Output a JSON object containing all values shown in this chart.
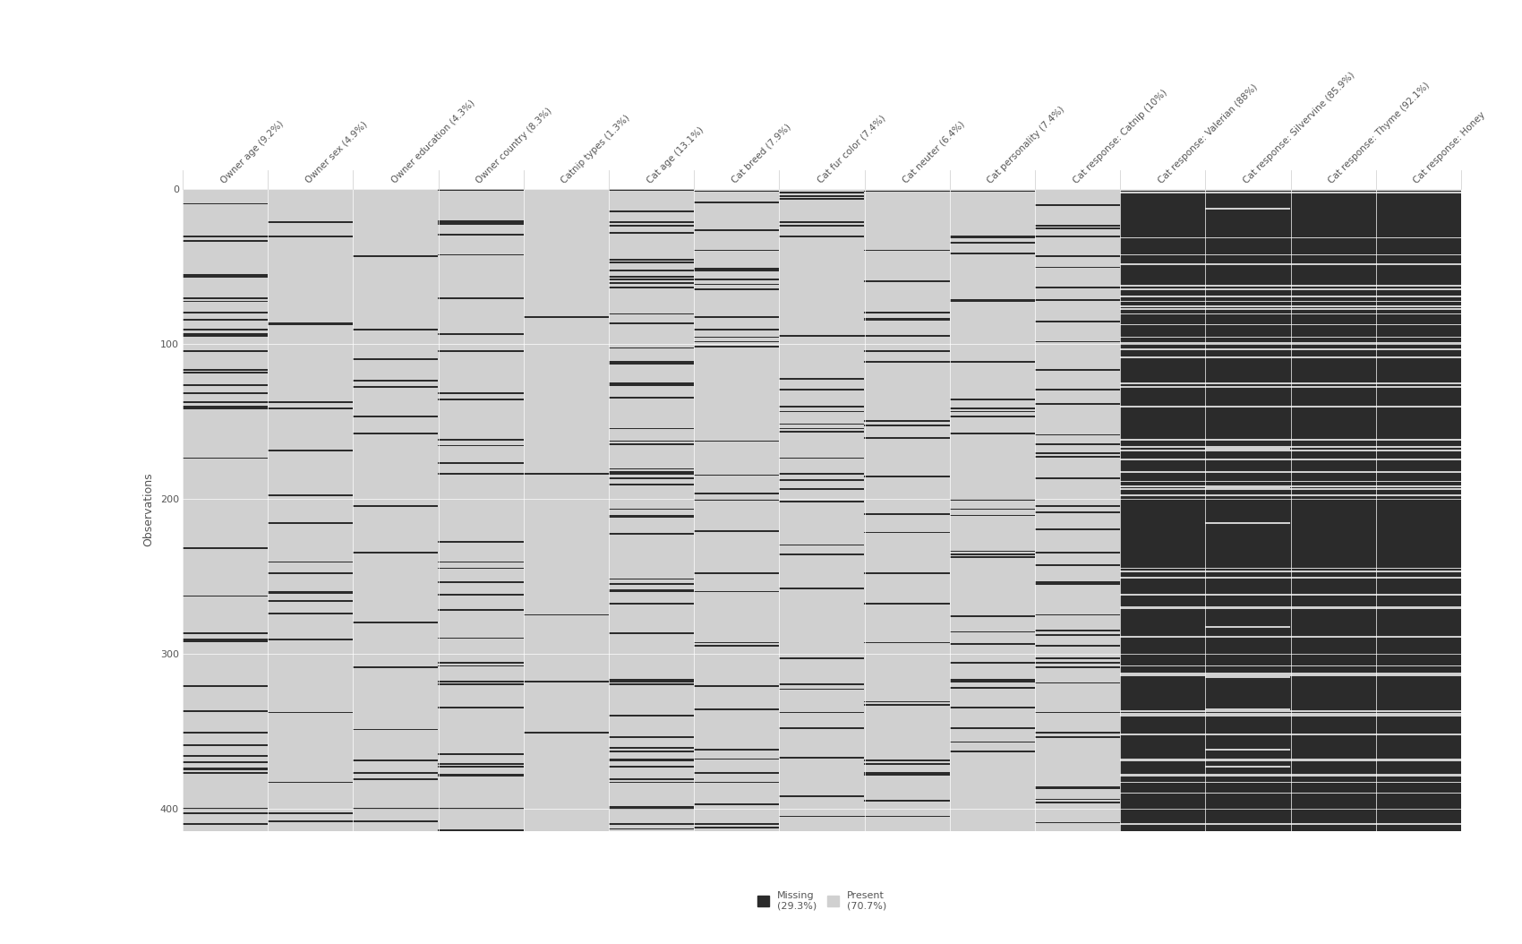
{
  "n_rows": 414,
  "columns": [
    "Owner age (9.2%)",
    "Owner sex (4.9%)",
    "Owner education (4.3%)",
    "Owner country (8.3%)",
    "Catnip types (1.3%)",
    "Cat age (13.1%)",
    "Cat breed (7.9%)",
    "Cat fur color (7.4%)",
    "Cat neuter (6.4%)",
    "Cat personality (7.4%)",
    "Cat response: Catnip (10%)",
    "Cat response: Valerian (88%)",
    "Cat response: Silvervine (85.9%)",
    "Cat response: Thyme (92.1%)",
    "Cat response: Honey"
  ],
  "missing_color": "#2b2b2b",
  "present_color": "#d0d0d0",
  "background_color": "#ffffff",
  "spine_color": "#cccccc",
  "ylabel": "Observations",
  "yticks": [
    0,
    100,
    200,
    300,
    400
  ],
  "missing_pct": 29.3,
  "present_pct": 70.7,
  "seed": 42,
  "col_missing_fractions": [
    0.092,
    0.049,
    0.043,
    0.083,
    0.013,
    0.131,
    0.079,
    0.074,
    0.064,
    0.074,
    0.1,
    0.88,
    0.859,
    0.921,
    0.95
  ]
}
